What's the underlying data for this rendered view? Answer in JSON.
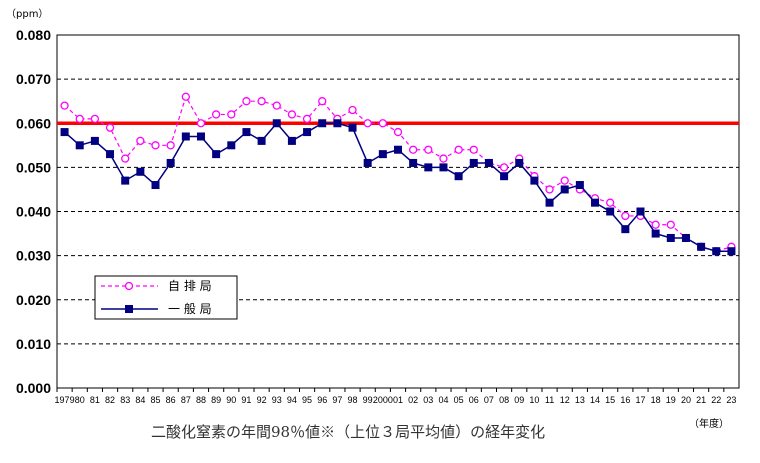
{
  "chart_data": {
    "type": "line",
    "ylabel_unit": "（ppm）",
    "xlabel_unit": "（年度）",
    "caption": "二酸化窒素の年間98％値※（上位３局平均値）の経年変化",
    "ylim": [
      0,
      0.08
    ],
    "y_ticks": [
      "0.000",
      "0.010",
      "0.020",
      "0.030",
      "0.040",
      "0.050",
      "0.060",
      "0.070",
      "0.080"
    ],
    "grid": "horizontal dashed",
    "legend_position": "lower-left",
    "categories": [
      "1979",
      "80",
      "81",
      "82",
      "83",
      "84",
      "85",
      "86",
      "87",
      "88",
      "89",
      "90",
      "91",
      "92",
      "93",
      "94",
      "95",
      "96",
      "97",
      "98",
      "99",
      "2000",
      "01",
      "02",
      "03",
      "04",
      "05",
      "06",
      "07",
      "08",
      "09",
      "10",
      "11",
      "12",
      "13",
      "14",
      "15",
      "16",
      "17",
      "18",
      "19",
      "20",
      "21",
      "22",
      "23"
    ],
    "series": [
      {
        "name": "自 排 局",
        "color": "#ff00ff",
        "style": "dashed-circle",
        "values": [
          0.064,
          0.061,
          0.061,
          0.059,
          0.052,
          0.056,
          0.055,
          0.055,
          0.066,
          0.06,
          0.062,
          0.062,
          0.065,
          0.065,
          0.064,
          0.062,
          0.061,
          0.065,
          0.061,
          0.063,
          0.06,
          0.06,
          0.058,
          0.054,
          0.054,
          0.052,
          0.054,
          0.054,
          0.051,
          0.05,
          0.052,
          0.048,
          0.045,
          0.047,
          0.045,
          0.043,
          0.042,
          0.039,
          0.039,
          0.037,
          0.037,
          0.034,
          0.032,
          0.031,
          0.032
        ]
      },
      {
        "name": "一 般 局",
        "color": "#000080",
        "style": "solid-square",
        "values": [
          0.058,
          0.055,
          0.056,
          0.053,
          0.047,
          0.049,
          0.046,
          0.051,
          0.057,
          0.057,
          0.053,
          0.055,
          0.058,
          0.056,
          0.06,
          0.056,
          0.058,
          0.06,
          0.06,
          0.059,
          0.051,
          0.053,
          0.054,
          0.051,
          0.05,
          0.05,
          0.048,
          0.051,
          0.051,
          0.048,
          0.051,
          0.047,
          0.042,
          0.045,
          0.046,
          0.042,
          0.04,
          0.036,
          0.04,
          0.035,
          0.034,
          0.034,
          0.032,
          0.031,
          0.031
        ]
      }
    ],
    "reference_line": {
      "value": 0.06,
      "color": "#ff0000"
    }
  }
}
